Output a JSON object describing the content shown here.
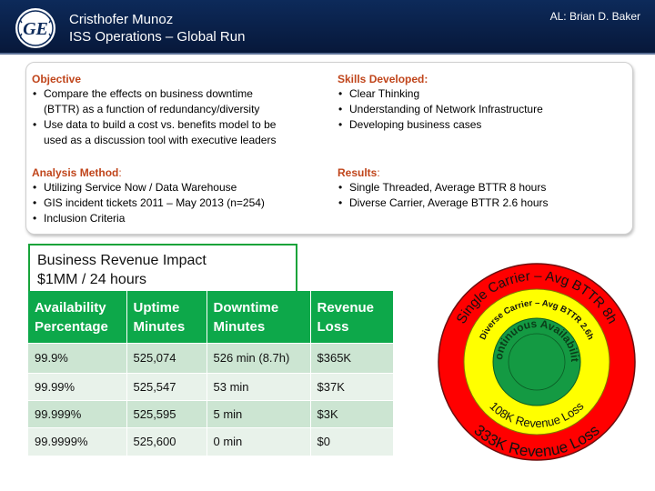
{
  "header": {
    "name": "Cristhofer Munoz",
    "subtitle": "ISS Operations – Global Run",
    "al": "AL: Brian D. Baker",
    "logo_text": "GE"
  },
  "objective": {
    "heading": "Objective",
    "items": [
      "Compare the effects on business downtime",
      "(BTTR) as a function of redundancy/diversity",
      "Use data to build a cost vs. benefits model to be",
      "used as a discussion tool with executive leaders"
    ]
  },
  "analysis": {
    "heading": "Analysis Method",
    "colon": ":",
    "items": [
      "Utilizing Service Now / Data Warehouse",
      "GIS incident tickets 2011 – May 2013 (n=254)",
      "Inclusion Criteria"
    ]
  },
  "skills": {
    "heading": "Skills Developed:",
    "items": [
      "Clear Thinking",
      "Understanding of Network Infrastructure",
      "Developing business cases"
    ]
  },
  "results": {
    "heading": "Results",
    "colon": ":",
    "items": [
      "Single Threaded, Average BTTR 8 hours",
      "Diverse Carrier, Average BTTR 2.6 hours"
    ]
  },
  "revenue_impact": {
    "line1": "Business Revenue Impact",
    "line2": "$1MM / 24 hours"
  },
  "table": {
    "headers": [
      [
        "Availability",
        "Percentage"
      ],
      [
        "Uptime",
        "Minutes"
      ],
      [
        "Downtime",
        "Minutes"
      ],
      [
        "Revenue",
        "Loss"
      ]
    ],
    "rows": [
      [
        "99.9%",
        "525,074",
        "526 min (8.7h)",
        "$365K"
      ],
      [
        "99.99%",
        "525,547",
        "53 min",
        "$37K"
      ],
      [
        "99.999%",
        "525,595",
        "5 min",
        "$3K"
      ],
      [
        "99.9999%",
        "525,600",
        "0 min",
        "$0"
      ]
    ]
  },
  "target": {
    "outer_top": "Single Carrier – Avg BTTR 8h",
    "outer_bottom": "333K Revenue Loss",
    "middle_top": "Diverse Carrier – Avg BTTR 2.6h",
    "middle_bottom": "108K Revenue Loss",
    "inner": "Continuous Availability",
    "colors": {
      "outer": "#ff0000",
      "middle": "#ffff00",
      "inner": "#149a43"
    }
  },
  "colors": {
    "header_bg": "#0d2a5a",
    "heading": "#c0451b",
    "table_header": "#0da84a",
    "row_odd": "#cce5d2",
    "row_even": "#e8f2ea"
  }
}
